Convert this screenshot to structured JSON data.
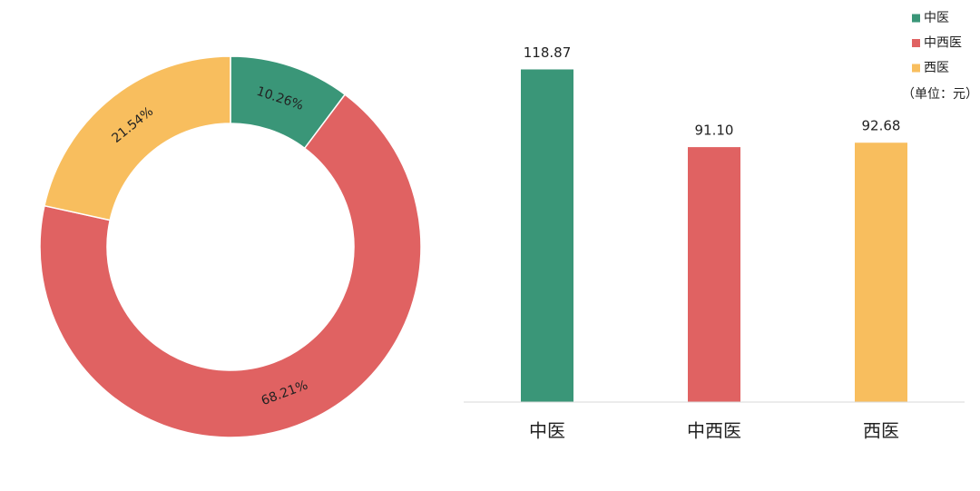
{
  "chart_data": [
    {
      "type": "donut",
      "categories": [
        "中医",
        "中西医",
        "西医"
      ],
      "values": [
        10.26,
        68.21,
        21.54
      ],
      "value_labels": [
        "10.26%",
        "68.21%",
        "21.54%"
      ],
      "colors": [
        "#3a9678",
        "#e06262",
        "#f8be5e"
      ],
      "legend": "top-right"
    },
    {
      "type": "bar",
      "unit_label": "（单位：元）",
      "categories": [
        "中医",
        "中西医",
        "西医"
      ],
      "values": [
        118.87,
        91.1,
        92.68
      ],
      "value_labels": [
        "118.87",
        "91.10",
        "92.68"
      ],
      "colors": [
        "#3a9678",
        "#e06262",
        "#f8be5e"
      ],
      "ylim": [
        0,
        120
      ]
    }
  ]
}
